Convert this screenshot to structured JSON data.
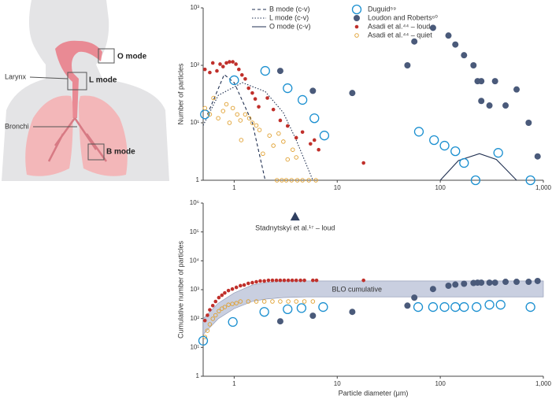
{
  "illustration": {
    "labels": [
      "O mode",
      "L mode",
      "Larynx",
      "Bronchi",
      "B mode"
    ]
  },
  "chart_data": [
    {
      "type": "scatter",
      "y_label": "Number of particles",
      "x_label": "",
      "log_x": true,
      "log_y": true,
      "legend": "top",
      "xlim": [
        0.5,
        1000
      ],
      "xticks": [
        1,
        10,
        100,
        {
          "value": 1000,
          "label": "1,000"
        }
      ],
      "ylim": [
        1,
        1000
      ],
      "yticks": [
        1,
        {
          "value": 10,
          "label": "10¹"
        },
        {
          "value": 100,
          "label": "10²"
        },
        {
          "value": 1000,
          "label": "10³"
        }
      ],
      "series": [
        {
          "name": "B mode (c-v)",
          "type": "line",
          "style": "dashed",
          "color": "#1f2f50",
          "x": [
            0.55,
            0.8,
            1.0,
            1.5,
            2.0
          ],
          "values": [
            14,
            69,
            50,
            10,
            1
          ]
        },
        {
          "name": "L mode (c-v)",
          "type": "line",
          "style": "dotted",
          "color": "#1f2f50",
          "x": [
            0.5,
            0.7,
            1.2,
            2,
            3,
            4,
            5.8
          ],
          "values": [
            9,
            30,
            50,
            35,
            15,
            5,
            1
          ]
        },
        {
          "name": "O mode (c-v)",
          "type": "line",
          "style": "solid",
          "color": "#1f2f50",
          "x": [
            100,
            150,
            240,
            350,
            550
          ],
          "values": [
            1,
            2.2,
            2.9,
            2.3,
            1
          ]
        },
        {
          "name": "Duguid⁵⁹",
          "type": "scatter",
          "marker": "open-large",
          "color": "#1a8fd0",
          "x": [
            0.52,
            1,
            2,
            3.3,
            4.6,
            6,
            7.5,
            62,
            87,
            110,
            140,
            170,
            365,
            220,
            750
          ],
          "values": [
            14,
            55,
            80,
            40,
            25,
            12,
            6,
            7,
            5,
            4,
            3.2,
            2,
            3,
            1,
            1
          ]
        },
        {
          "name": "Loudon and Roberts⁶⁰",
          "type": "scatter",
          "marker": "filled-large",
          "color": "#4a5a7a",
          "x": [
            2.8,
            5.8,
            14,
            48,
            56,
            85,
            120,
            140,
            170,
            210,
            230,
            250,
            340,
            250,
            300,
            430,
            550,
            720,
            880
          ],
          "values": [
            80,
            36,
            33,
            100,
            260,
            450,
            330,
            230,
            150,
            100,
            53,
            53,
            53,
            24,
            20,
            20,
            38,
            10,
            2.6
          ]
        },
        {
          "name": "Asadi et al.⁴⁴ – loud",
          "type": "scatter",
          "marker": "filled-small",
          "color": "#c0302b",
          "x": [
            0.52,
            0.58,
            0.62,
            0.68,
            0.73,
            0.78,
            0.84,
            0.9,
            0.97,
            1.04,
            1.11,
            1.19,
            1.28,
            1.38,
            1.5,
            1.6,
            1.73,
            2.1,
            2.4,
            2.8,
            3.3,
            4,
            4.6,
            5.5,
            6,
            6.6,
            18
          ],
          "values": [
            85,
            75,
            110,
            80,
            105,
            95,
            110,
            115,
            115,
            105,
            85,
            68,
            58,
            40,
            33,
            26,
            19,
            27,
            17,
            11,
            8.8,
            5.5,
            6.9,
            4.3,
            5,
            3.4,
            2
          ]
        },
        {
          "name": "Asadi et al.⁴⁴ – quiet",
          "type": "scatter",
          "marker": "open-small",
          "color": "#e0a030",
          "x": [
            0.52,
            0.58,
            0.63,
            0.7,
            0.78,
            0.84,
            0.9,
            0.97,
            1.07,
            1.15,
            1.28,
            1.4,
            1.5,
            1.64,
            1.76,
            1.17,
            1.9,
            2.2,
            2.4,
            2.7,
            3,
            3.3,
            3.7,
            4,
            2.6,
            2.9,
            3.2,
            3.6,
            4.1,
            4.6,
            5.3,
            6.2
          ],
          "values": [
            18,
            14,
            27,
            12,
            16,
            21,
            10,
            18,
            14,
            11,
            14,
            12,
            10,
            9,
            7.5,
            5,
            2.9,
            6,
            4,
            6.5,
            4.7,
            2.3,
            3.4,
            2.5,
            1,
            1,
            1,
            1,
            1,
            1,
            1,
            1
          ]
        }
      ]
    },
    {
      "type": "scatter",
      "y_label": "Cumulative number of particles",
      "x_label": "Particle diameter (μm)",
      "log_x": true,
      "log_y": true,
      "xlim": [
        0.5,
        1000
      ],
      "xticks": [
        1,
        10,
        100,
        {
          "value": 1000,
          "label": "1,000"
        }
      ],
      "ylim": [
        1,
        1000000
      ],
      "yticks": [
        1,
        {
          "value": 10,
          "label": "10¹"
        },
        {
          "value": 100,
          "label": "10²"
        },
        {
          "value": 1000,
          "label": "10³"
        },
        {
          "value": 10000,
          "label": "10⁴"
        },
        {
          "value": 100000,
          "label": "10⁵"
        },
        {
          "value": 1000000,
          "label": "10⁶"
        }
      ],
      "series": [
        {
          "type": "band",
          "label": "BLO cumulative",
          "color": "#c9cfe0",
          "x": [
            0.5,
            0.7,
            1,
            1.5,
            2,
            3,
            5,
            10,
            100,
            1000
          ],
          "lower": [
            28,
            98,
            220,
            390,
            470,
            530,
            560,
            560,
            560,
            560
          ],
          "upper": [
            98,
            340,
            770,
            1450,
            1750,
            2000,
            2000,
            2000,
            2000,
            2000
          ]
        },
        {
          "type": "scatter",
          "marker": "filled-small",
          "color": "#c0302b",
          "x": [
            0.52,
            0.55,
            0.58,
            0.62,
            0.66,
            0.71,
            0.76,
            0.81,
            0.88,
            0.96,
            1.05,
            1.15,
            1.25,
            1.37,
            1.5,
            1.64,
            1.79,
            1.96,
            2.15,
            2.35,
            2.57,
            2.8,
            3.06,
            3.35,
            3.66,
            4,
            4.4,
            4.8,
            5.8,
            6.3,
            18
          ],
          "values": [
            85,
            130,
            200,
            280,
            390,
            530,
            640,
            770,
            930,
            1050,
            1200,
            1370,
            1450,
            1650,
            1750,
            1870,
            2000,
            2000,
            2100,
            2100,
            2100,
            2100,
            2100,
            2100,
            2100,
            2100,
            2100,
            2100,
            2100,
            2100,
            2100
          ]
        },
        {
          "type": "scatter",
          "marker": "open-small",
          "color": "#e0a030",
          "x": [
            0.52,
            0.55,
            0.58,
            0.62,
            0.66,
            0.71,
            0.76,
            0.81,
            0.88,
            0.96,
            1.05,
            1.15,
            1.37,
            1.64,
            1.96,
            2.35,
            2.8,
            3.35,
            4,
            4.8,
            5.8
          ],
          "values": [
            23,
            38,
            63,
            98,
            130,
            180,
            220,
            250,
            300,
            320,
            340,
            390,
            390,
            390,
            390,
            390,
            390,
            390,
            390,
            390,
            390
          ]
        },
        {
          "type": "scatter",
          "marker": "open-large",
          "color": "#1a8fd0",
          "x": [
            0.5,
            0.97,
            1.96,
            3.3,
            4.5,
            7.3,
            61,
            85,
            110,
            140,
            170,
            225,
            300,
            385,
            750
          ],
          "values": [
            17,
            76,
            170,
            210,
            230,
            250,
            250,
            250,
            250,
            250,
            250,
            250,
            300,
            300,
            250
          ]
        },
        {
          "type": "scatter",
          "marker": "filled-large",
          "color": "#4a5a7a",
          "x": [
            2.8,
            5.8,
            14,
            48,
            56,
            85,
            120,
            140,
            170,
            210,
            230,
            250,
            300,
            340,
            430,
            550,
            720,
            880
          ],
          "values": [
            80,
            125,
            170,
            280,
            530,
            1050,
            1370,
            1500,
            1600,
            1700,
            1750,
            1750,
            1750,
            1750,
            1870,
            1870,
            1870,
            2000
          ]
        },
        {
          "type": "marker",
          "label": "Stadnytskyi et al.¹⁷ – loud",
          "color": "#2f3f60",
          "x": [
            3.9
          ],
          "values": [
            340000
          ]
        }
      ]
    }
  ]
}
